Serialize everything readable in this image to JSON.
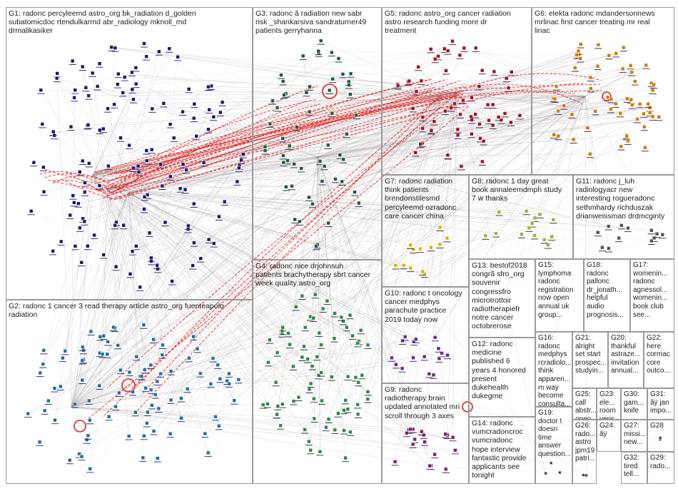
{
  "groups": [
    {
      "id": "G1",
      "label": "G1: radonc percyleemd astro_org bk_radiation d_golden\nsubatomicdoc rtendulkarmd abr_radiology mknoll_md\ndrmalikasiker",
      "color": "#1a1a6e"
    },
    {
      "id": "G2",
      "label": "G2: radonc 1 cancer 3 read therapy article astro_org fuenteapolo\nradiation",
      "color": "#1f6fa8"
    },
    {
      "id": "G3",
      "label": "G3: radonc â radiation new sabr\nrisk _shankarsiva sandraturner49\npatients gerryhanna",
      "color": "#1d5e3a"
    },
    {
      "id": "G4",
      "label": "G4: radonc nice drjohnsuh\npatients brachytherapy sbrt cancer\nweek quality astro_org",
      "color": "#2e8b3a"
    },
    {
      "id": "G5",
      "label": "G5: radonc astro_org cancer radiation\nastro research funding more dr\ntreatment",
      "color": "#a0121e"
    },
    {
      "id": "G6",
      "label": "G6: elekta radonc mdandersonnews\nmrlinac first cancer treating mr real\nlinac",
      "color": "#d27b00"
    },
    {
      "id": "G7",
      "label": "G7: radonc radiation\nthink patients\nbrendonstilesmd\npercyleemd ozradonc\ncare cancer china",
      "color": "#d8b800"
    },
    {
      "id": "G8",
      "label": "G8: radonc 1 day great\nbook annaleemdmph study\n7 w thanks",
      "color": "#9ab82a"
    },
    {
      "id": "G9",
      "label": "G9: radonc\nradiotherapy brain\nupdated annotated mri\nscroll through 3 axes",
      "color": "#8e1a6b"
    },
    {
      "id": "G10",
      "label": "G10: radonc t oncology\ncancer medphys\nparachute practice\n2019 today now",
      "color": "#6a2a8a"
    },
    {
      "id": "G11",
      "label": "G11: radonc j_luh\nradiologyacr new\ninteresting rogueradonc\nsethmhardy richduszak\ndrianweissman drdmcginty",
      "color": "#555555"
    },
    {
      "id": "G12",
      "label": "G12: radonc\nmedicine\npublished 6\nyears 4 honored\npresent\ndukehealth\ndukegme",
      "color": "#444444"
    },
    {
      "id": "G13",
      "label": "G13: bestof2018\ncongrã sfro_org\nsouvenir\ncongressfro\nmicrotrottoir\nradiotherapiefr\nnotre cancer\noctobrerose",
      "color": "#444444"
    },
    {
      "id": "G14",
      "label": "G14: radonc\nvumcradoncroc\nvumcradonc\nhope interview\nfantastic provide\napplicants see\ntonight",
      "color": "#444444"
    },
    {
      "id": "G15",
      "label": "G15:\nlymphoma\nradonc\nregistration\nnow open\nannual uk\ngroup...",
      "color": "#444444"
    },
    {
      "id": "G16",
      "label": "G16:\nradonc\nmedphys\nrcradiolo...\nthink\napparen...\nm way\nbecome\nconsulta...",
      "color": "#444444"
    },
    {
      "id": "G17",
      "label": "G17:\nwomenin...\nradonc\nagnessol...\nwomenin...\nbook club\nsee...",
      "color": "#444444"
    },
    {
      "id": "G18",
      "label": "G18:\nradonc\npallonc\ndr_jonath...\nhelpful\naudio\nprognosis...",
      "color": "#444444"
    },
    {
      "id": "G19",
      "label": "G19:\ndoctor t\ndoesn\ntime\nanswer\nquestion...",
      "color": "#444444"
    },
    {
      "id": "G20",
      "label": "G20:\nthankful\nastraze...\ninvitation\nannual...",
      "color": "#444444"
    },
    {
      "id": "G21",
      "label": "G21:\nalright\nset start\nprospec...\nstudyin...",
      "color": "#444444"
    },
    {
      "id": "G22",
      "label": "G22:\nhere\ncormac\ncore\noutco...",
      "color": "#444444"
    },
    {
      "id": "G23",
      "label": "G23:\nele...\nroom\nveris...",
      "color": "#444444"
    },
    {
      "id": "G24",
      "label": "G24:\nãÿ",
      "color": "#444444"
    },
    {
      "id": "G25",
      "label": "G25:\ncall\nabstr...\nopen...",
      "color": "#444444"
    },
    {
      "id": "G26",
      "label": "G26:\nrado...\nastro\njpm19\npatri...",
      "color": "#444444"
    },
    {
      "id": "G27",
      "label": "G27:\nmissi...\nnew...",
      "color": "#444444"
    },
    {
      "id": "G28",
      "label": "G28",
      "color": "#444444"
    },
    {
      "id": "G29",
      "label": "G29:\nrado...",
      "color": "#444444"
    },
    {
      "id": "G30",
      "label": "G30:\ngam...\nknife",
      "color": "#444444"
    },
    {
      "id": "G31",
      "label": "G31:\nãÿ jan\nimpo...",
      "color": "#444444"
    },
    {
      "id": "G32",
      "label": "G32:\ntired\ntell...",
      "color": "#444444"
    }
  ],
  "edge_colors": {
    "normal": "#8a7f86",
    "highlight": "#e02020"
  }
}
